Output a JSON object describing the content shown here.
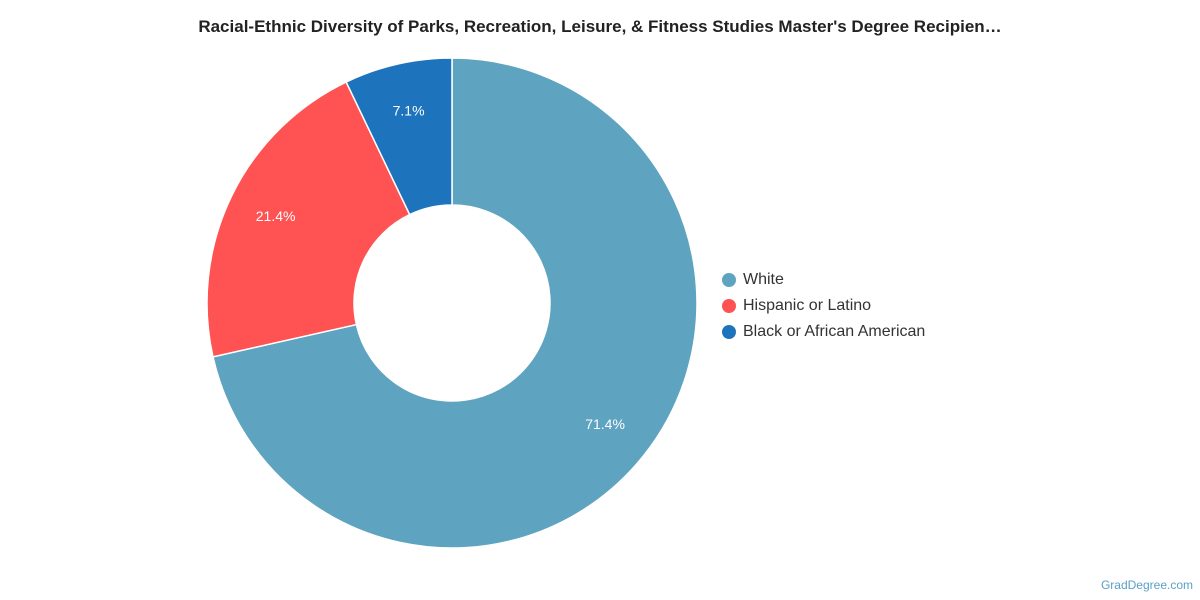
{
  "chart_data": {
    "type": "pie",
    "title": "Racial-Ethnic Diversity of Parks, Recreation, Leisure, & Fitness Studies Master's Degree Recipien…",
    "donut": true,
    "slices": [
      {
        "name": "White",
        "value": 71.4,
        "label": "71.4%",
        "color": "#5ea3bf"
      },
      {
        "name": "Hispanic or Latino",
        "value": 21.4,
        "label": "21.4%",
        "color": "#ff5252"
      },
      {
        "name": "Black or African American",
        "value": 7.1,
        "label": "7.1%",
        "color": "#1e74bc"
      }
    ],
    "legend": "right"
  },
  "watermark": "GradDegree.com"
}
